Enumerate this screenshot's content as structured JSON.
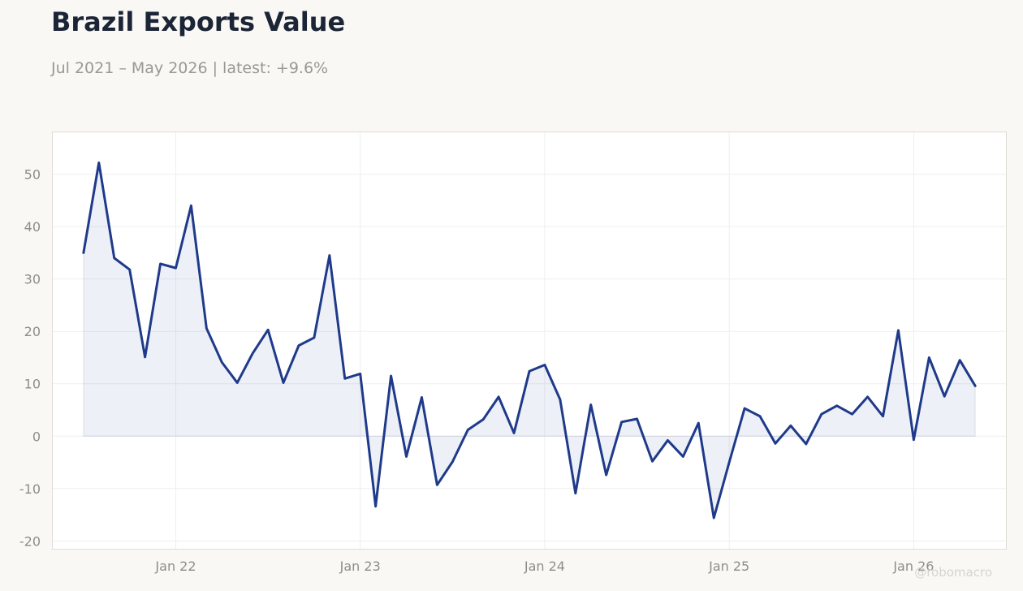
{
  "header": {
    "title": "Brazil Exports Value",
    "subtitle": "Jul 2021 – May 2026 | latest: +9.6%"
  },
  "watermark": "@robomacro",
  "colors": {
    "line": "#1f3a8a",
    "area_fill": "#1f3a8a",
    "background": "#f9f8f5",
    "plot_background": "#ffffff",
    "grid": "#efefef"
  },
  "chart_data": {
    "type": "area",
    "title": "Brazil Exports Value",
    "xlabel": "",
    "ylabel": "",
    "x_start": "Jul 2021",
    "x_end": "May 2026",
    "xlim": [
      "2021-05",
      "2026-07"
    ],
    "ylim": [
      -21.5,
      58
    ],
    "grid": true,
    "yticks": [
      -20,
      -10,
      0,
      10,
      20,
      30,
      40,
      50
    ],
    "xticks": [
      {
        "date": "2022-01",
        "label": "Jan 22"
      },
      {
        "date": "2023-01",
        "label": "Jan 23"
      },
      {
        "date": "2024-01",
        "label": "Jan 24"
      },
      {
        "date": "2025-01",
        "label": "Jan 25"
      },
      {
        "date": "2026-01",
        "label": "Jan 26"
      }
    ],
    "series": [
      {
        "x": [
          "2021-07",
          "2021-08",
          "2021-09",
          "2021-10",
          "2021-11",
          "2021-12",
          "2022-01",
          "2022-02",
          "2022-03",
          "2022-04",
          "2022-05",
          "2022-06",
          "2022-07",
          "2022-08",
          "2022-09",
          "2022-10",
          "2022-11",
          "2022-12",
          "2023-01",
          "2023-02",
          "2023-03",
          "2023-04",
          "2023-05",
          "2023-06",
          "2023-07",
          "2023-08",
          "2023-09",
          "2023-10",
          "2023-11",
          "2023-12",
          "2024-01",
          "2024-02",
          "2024-03",
          "2024-04",
          "2024-05",
          "2024-06",
          "2024-07",
          "2024-08",
          "2024-09",
          "2024-10",
          "2024-11",
          "2024-12",
          "2025-01",
          "2025-02",
          "2025-03",
          "2025-04",
          "2025-05",
          "2025-06",
          "2025-07",
          "2025-08",
          "2025-09",
          "2025-10",
          "2025-11",
          "2025-12",
          "2026-01",
          "2026-02",
          "2026-03",
          "2026-04",
          "2026-05"
        ],
        "values": [
          35.0,
          52.2,
          34.0,
          31.8,
          15.1,
          32.9,
          32.1,
          44.0,
          20.6,
          14.1,
          10.2,
          15.8,
          20.3,
          10.2,
          17.3,
          18.8,
          34.5,
          11.0,
          11.9,
          -13.4,
          11.5,
          -3.9,
          7.4,
          -9.3,
          -4.9,
          1.2,
          3.2,
          7.5,
          0.6,
          12.4,
          13.6,
          7.0,
          -10.9,
          6.0,
          -7.4,
          2.7,
          3.3,
          -4.8,
          -0.8,
          -3.9,
          2.5,
          -15.6,
          -5.0,
          5.3,
          3.8,
          -1.4,
          2.0,
          -1.5,
          4.2,
          5.8,
          4.2,
          7.5,
          3.8,
          20.2,
          -0.7,
          15.0,
          7.6,
          14.5,
          9.6
        ]
      }
    ]
  }
}
